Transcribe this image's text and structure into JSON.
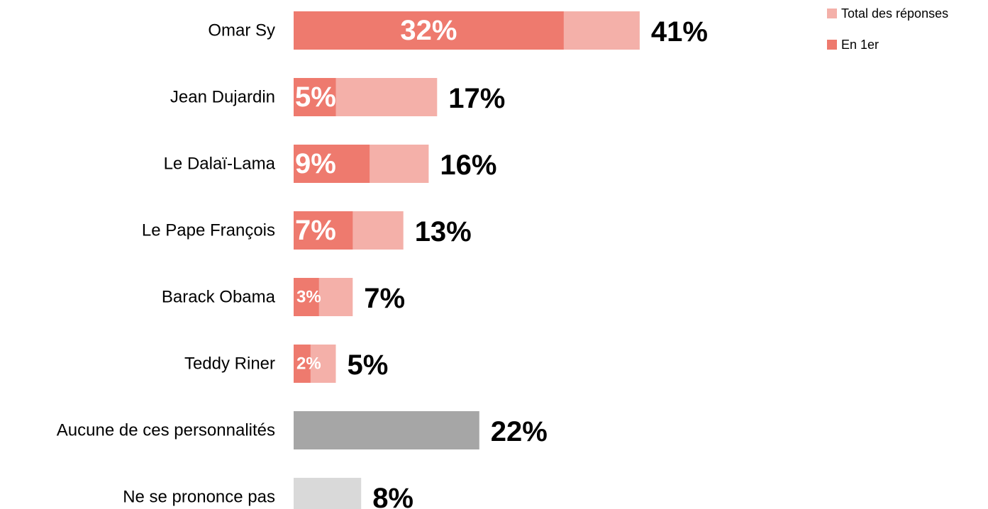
{
  "chart_data": {
    "type": "bar",
    "orientation": "horizontal",
    "title": "",
    "xlabel": "",
    "ylabel": "",
    "grid": false,
    "legend_position": "top-right",
    "categories": [
      "Omar Sy",
      "Jean Dujardin",
      "Le Dalaï-Lama",
      "Le Pape François",
      "Barack Obama",
      "Teddy Riner",
      "Aucune de ces personnalités",
      "Ne se prononce pas"
    ],
    "series": [
      {
        "name": "Total des réponses",
        "color": "#f4b0a9",
        "values": [
          41,
          17,
          16,
          13,
          7,
          5,
          22,
          8
        ],
        "labels": [
          "41%",
          "17%",
          "16%",
          "13%",
          "7%",
          "5%",
          "22%",
          "8%"
        ]
      },
      {
        "name": "En 1er",
        "color": "#ee7a6e",
        "values": [
          32,
          5,
          9,
          7,
          3,
          2,
          null,
          null
        ],
        "labels": [
          "32%",
          "5%",
          "9%",
          "7%",
          "3%",
          "2%",
          "",
          ""
        ]
      }
    ],
    "other_colors": [
      "#a6a6a6",
      "#d9d9d9"
    ]
  }
}
